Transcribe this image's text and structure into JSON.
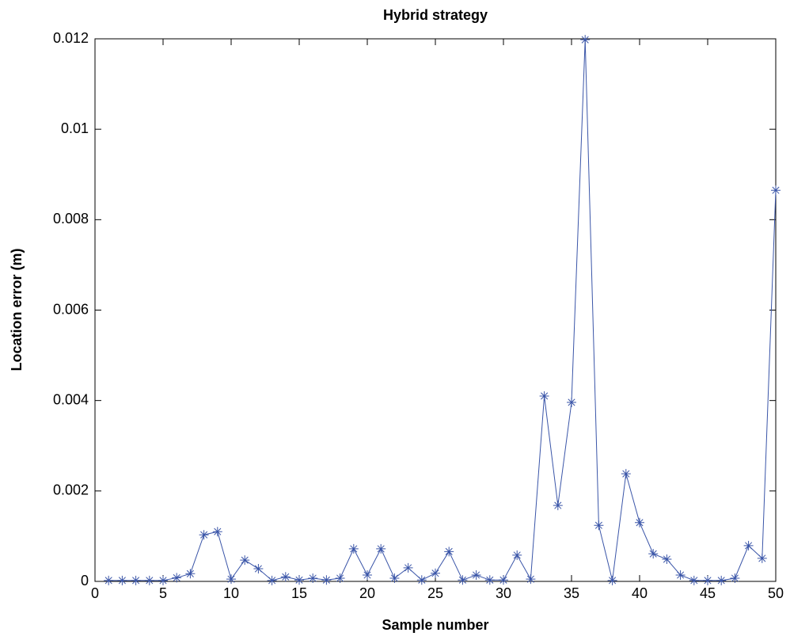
{
  "chart_data": {
    "type": "line",
    "title": "Hybrid strategy",
    "x_label": "Sample number",
    "y_label": "Location error (m)",
    "x": [
      1,
      2,
      3,
      4,
      5,
      6,
      7,
      8,
      9,
      10,
      11,
      12,
      13,
      14,
      15,
      16,
      17,
      18,
      19,
      20,
      21,
      22,
      23,
      24,
      25,
      26,
      27,
      28,
      29,
      30,
      31,
      32,
      33,
      34,
      35,
      36,
      37,
      38,
      39,
      40,
      41,
      42,
      43,
      44,
      45,
      46,
      47,
      48,
      49,
      50
    ],
    "values": [
      2e-05,
      2e-05,
      2e-05,
      2e-05,
      2e-05,
      8e-05,
      0.00017,
      0.00103,
      0.0011,
      5e-05,
      0.00047,
      0.00028,
      2e-05,
      0.0001,
      3e-05,
      7e-05,
      3e-05,
      7e-05,
      0.00072,
      0.00014,
      0.00072,
      7e-05,
      0.0003,
      3e-05,
      0.00018,
      0.00066,
      3e-05,
      0.00014,
      3e-05,
      3e-05,
      0.00058,
      5e-05,
      0.0041,
      0.00168,
      0.00396,
      0.01198,
      0.00124,
      2e-05,
      0.00238,
      0.0013,
      0.00061,
      0.00049,
      0.00014,
      2e-05,
      2e-05,
      2e-05,
      7e-05,
      0.00079,
      0.00051,
      0.00865
    ],
    "color": "#3a55a8",
    "xlim": [
      0,
      50
    ],
    "xticks": [
      0,
      5,
      10,
      15,
      20,
      25,
      30,
      35,
      40,
      45,
      50
    ],
    "ylim": [
      0,
      0.012
    ],
    "yticks": [
      0,
      0.002,
      0.004,
      0.006,
      0.008,
      0.01,
      0.012
    ]
  }
}
